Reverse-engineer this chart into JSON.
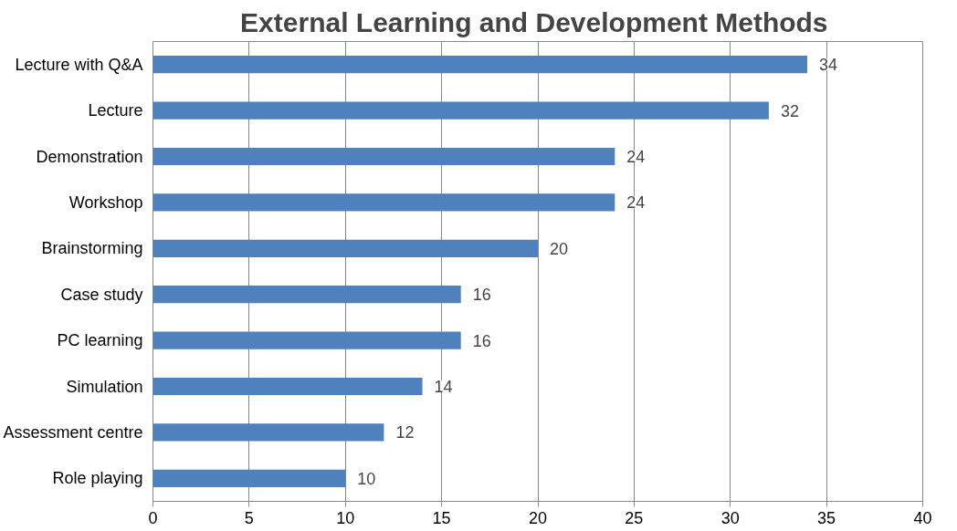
{
  "chart_data": {
    "type": "bar",
    "orientation": "horizontal",
    "title": "External Learning and Development  Methods",
    "categories": [
      "Lecture with Q&A",
      "Lecture",
      "Demonstration",
      "Workshop",
      "Brainstorming",
      "Case study",
      "PC learning",
      "Simulation",
      "Assessment centre",
      "Role playing"
    ],
    "values": [
      34,
      32,
      24,
      24,
      20,
      16,
      16,
      14,
      12,
      10
    ],
    "color": "#4f81bd",
    "xlim": [
      0,
      40
    ],
    "xticks": [
      0,
      5,
      10,
      15,
      20,
      25,
      30,
      35,
      40
    ],
    "grid": "x",
    "data_labels": true
  }
}
